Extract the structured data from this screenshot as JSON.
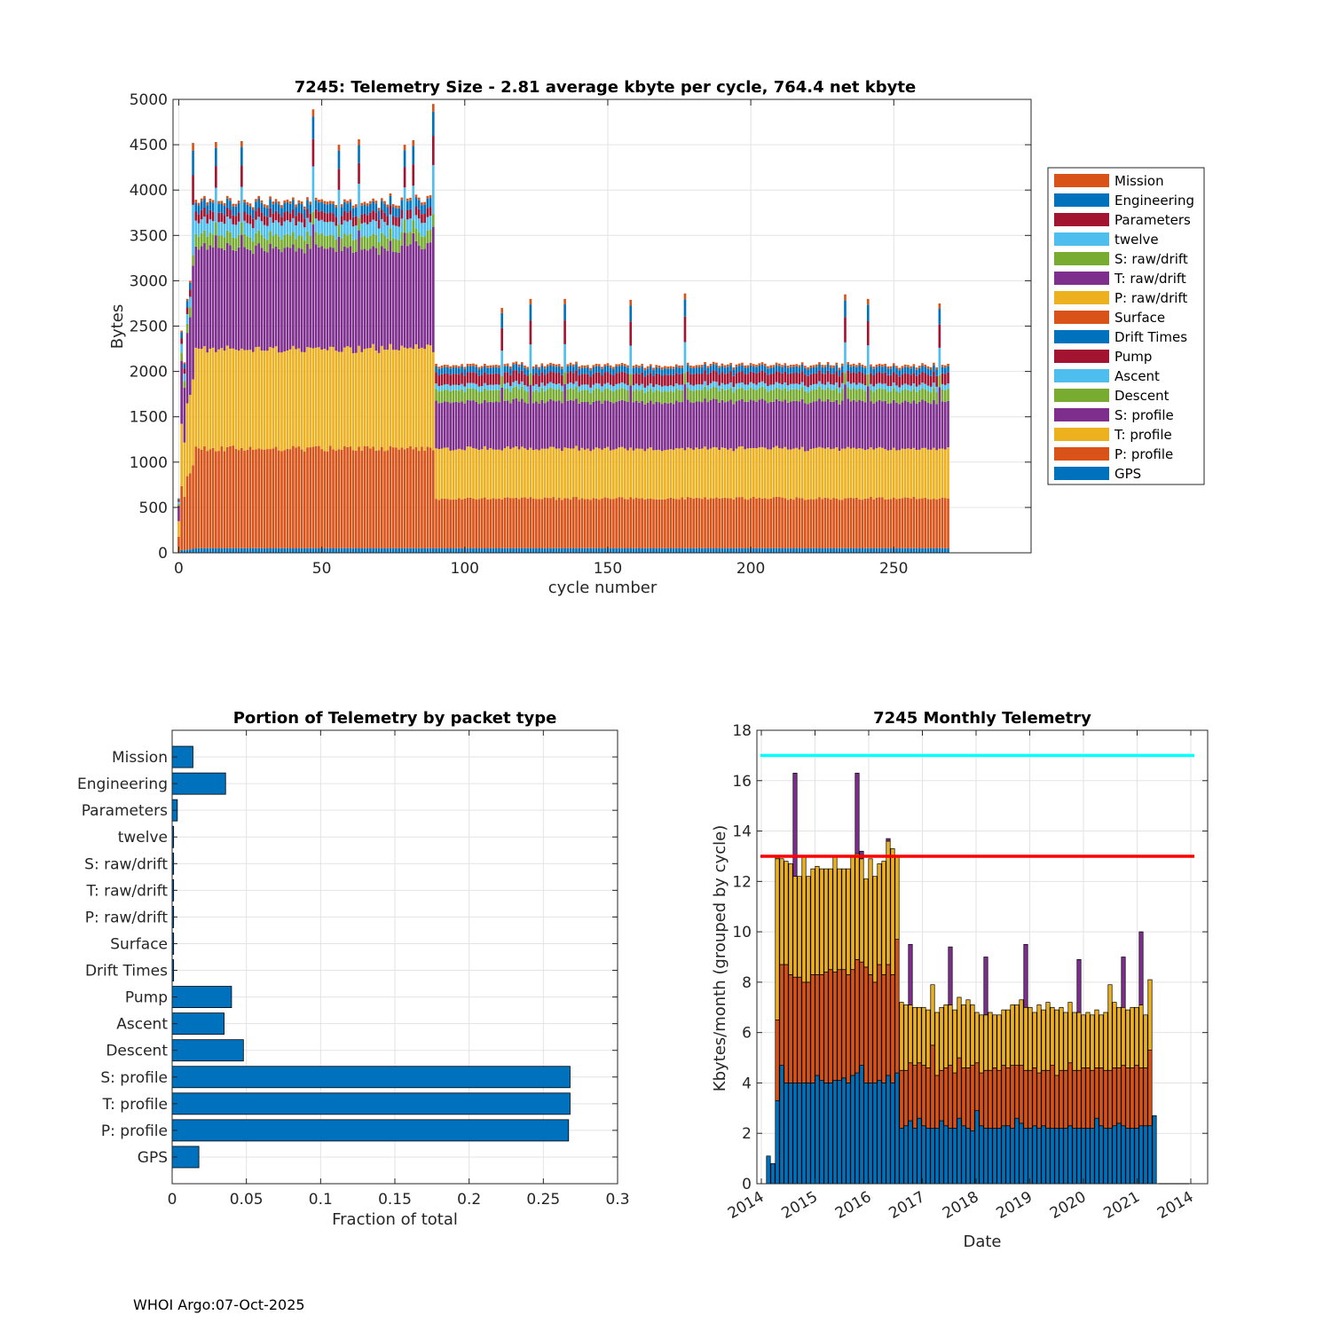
{
  "footer": "WHOI Argo:07-Oct-2025",
  "chart_data": [
    {
      "id": "telemetry-size",
      "type": "bar",
      "stacked": true,
      "title": "7245: Telemetry Size - 2.81 average kbyte per cycle,  764.4 net kbyte",
      "xlabel": "cycle number",
      "ylabel": "Bytes",
      "xlim": [
        -2,
        298
      ],
      "ylim": [
        0,
        5000
      ],
      "xticks": [
        0,
        50,
        100,
        150,
        200,
        250
      ],
      "yticks": [
        0,
        500,
        1000,
        1500,
        2000,
        2500,
        3000,
        3500,
        4000,
        4500,
        5000
      ],
      "grid": true,
      "legend_position": "outside-right",
      "num_cycles": 270,
      "legend": [
        {
          "label": "Mission",
          "color": "#D95319"
        },
        {
          "label": "Engineering",
          "color": "#0072BD"
        },
        {
          "label": "Parameters",
          "color": "#A2142F"
        },
        {
          "label": "twelve",
          "color": "#4DBEEE"
        },
        {
          "label": "S: raw/drift",
          "color": "#77AC30"
        },
        {
          "label": "T: raw/drift",
          "color": "#7E2F8E"
        },
        {
          "label": "P: raw/drift",
          "color": "#EDB120"
        },
        {
          "label": "Surface",
          "color": "#D95319"
        },
        {
          "label": "Drift Times",
          "color": "#0072BD"
        },
        {
          "label": "Pump",
          "color": "#A2142F"
        },
        {
          "label": "Ascent",
          "color": "#4DBEEE"
        },
        {
          "label": "Descent",
          "color": "#77AC30"
        },
        {
          "label": "S: profile",
          "color": "#7E2F8E"
        },
        {
          "label": "T: profile",
          "color": "#EDB120"
        },
        {
          "label": "P: profile",
          "color": "#D95319"
        },
        {
          "label": "GPS",
          "color": "#0072BD"
        }
      ],
      "segments_bottom_to_top": [
        {
          "name": "GPS",
          "color": "#0072BD",
          "phase1": 50,
          "phase2": 50
        },
        {
          "name": "P: profile",
          "color": "#D95319",
          "phase1": 1100,
          "phase2": 550
        },
        {
          "name": "T: profile",
          "color": "#EDB120",
          "phase1": 1100,
          "phase2": 550
        },
        {
          "name": "S: profile",
          "color": "#7E2F8E",
          "phase1": 1110,
          "phase2": 520
        },
        {
          "name": "Descent",
          "color": "#77AC30",
          "phase1": 140,
          "phase2": 130
        },
        {
          "name": "Ascent",
          "color": "#4DBEEE",
          "phase1": 150,
          "phase2": 60
        },
        {
          "name": "Pump",
          "color": "#A2142F",
          "phase1": 100,
          "phase2": 120
        },
        {
          "name": "Engineering",
          "color": "#0072BD",
          "phase1": 100,
          "phase2": 70
        },
        {
          "name": "Mission",
          "color": "#D95319",
          "phase1": 30,
          "phase2": 25
        }
      ],
      "phase_boundary_cycle": 89,
      "phase1_total_approx": 3880,
      "phase2_total_approx": 2150,
      "spikes": [
        {
          "cycle": 5,
          "value": 4520
        },
        {
          "cycle": 13,
          "value": 4530
        },
        {
          "cycle": 22,
          "value": 4540
        },
        {
          "cycle": 47,
          "value": 4890
        },
        {
          "cycle": 56,
          "value": 4500
        },
        {
          "cycle": 63,
          "value": 4560
        },
        {
          "cycle": 79,
          "value": 4500
        },
        {
          "cycle": 82,
          "value": 4550
        },
        {
          "cycle": 89,
          "value": 4950
        },
        {
          "cycle": 113,
          "value": 2700
        },
        {
          "cycle": 123,
          "value": 2800
        },
        {
          "cycle": 135,
          "value": 2800
        },
        {
          "cycle": 158,
          "value": 2790
        },
        {
          "cycle": 177,
          "value": 2860
        },
        {
          "cycle": 233,
          "value": 2850
        },
        {
          "cycle": 241,
          "value": 2800
        },
        {
          "cycle": 266,
          "value": 2750
        }
      ]
    },
    {
      "id": "portion-by-packet",
      "type": "bar",
      "orientation": "horizontal",
      "title": "Portion of Telemetry by packet type",
      "xlabel": "Fraction of total",
      "ylabel": "",
      "xlim": [
        0,
        0.3
      ],
      "xticks": [
        "0",
        "0.05",
        "0.1",
        "0.15",
        "0.2",
        "0.25",
        "0.3"
      ],
      "grid": true,
      "categories": [
        "Mission",
        "Engineering",
        "Parameters",
        "twelve",
        "S: raw/drift",
        "T: raw/drift",
        "P: raw/drift",
        "Surface",
        "Drift Times",
        "Pump",
        "Ascent",
        "Descent",
        "S: profile",
        "T: profile",
        "P: profile",
        "GPS"
      ],
      "values": [
        0.014,
        0.036,
        0.0035,
        0.001,
        0.001,
        0.001,
        0.001,
        0.001,
        0.001,
        0.04,
        0.035,
        0.048,
        0.268,
        0.268,
        0.267,
        0.018
      ],
      "bar_color": "#0072BD"
    },
    {
      "id": "monthly-telemetry",
      "type": "bar",
      "stacked": true,
      "title": "7245 Monthly Telemetry",
      "xlabel": "Date",
      "ylabel": "Kbytes/month (grouped by cycle)",
      "ylim": [
        0,
        18
      ],
      "yticks": [
        0,
        2,
        4,
        6,
        8,
        10,
        12,
        14,
        16,
        18
      ],
      "xticklabels": [
        "2014",
        "2015",
        "2016",
        "2017",
        "2018",
        "2019",
        "2020",
        "2021",
        "2014"
      ],
      "grid": true,
      "reference_lines": [
        {
          "value": 17,
          "color": "#00FFFF"
        },
        {
          "value": 13,
          "color": "#FF0000"
        }
      ],
      "series_colors": [
        "#0072BD",
        "#D95319",
        "#EDB120",
        "#7E2F8E",
        "#77AC30"
      ],
      "months": [
        {
          "segments": [
            1.1
          ]
        },
        {
          "segments": [
            0.8,
            0,
            0,
            0,
            0
          ]
        },
        {
          "segments": [
            3.3,
            3.2,
            6.4,
            0,
            0.1
          ]
        },
        {
          "segments": [
            4.7,
            4.0,
            4.2,
            0,
            0
          ]
        },
        {
          "segments": [
            4.0,
            4.7,
            4.1,
            0,
            0
          ]
        },
        {
          "segments": [
            4.0,
            4.3,
            4.4,
            0,
            0
          ]
        },
        {
          "segments": [
            4.0,
            4.2,
            4.0,
            4.1,
            0
          ]
        },
        {
          "segments": [
            4.0,
            4.2,
            4.0,
            0,
            0
          ]
        },
        {
          "segments": [
            4.0,
            4.0,
            5.0,
            0,
            0
          ]
        },
        {
          "segments": [
            4.0,
            4.0,
            4.2,
            0,
            0
          ]
        },
        {
          "segments": [
            4.0,
            4.3,
            4.2,
            0,
            0
          ]
        },
        {
          "segments": [
            4.3,
            4.0,
            4.3,
            0,
            0
          ]
        },
        {
          "segments": [
            4.1,
            4.2,
            4.2,
            0,
            0
          ]
        },
        {
          "segments": [
            4.0,
            4.4,
            4.1,
            0,
            0
          ]
        },
        {
          "segments": [
            4.0,
            4.5,
            4.0,
            0,
            0
          ]
        },
        {
          "segments": [
            4.1,
            4.3,
            4.6,
            0,
            0
          ]
        },
        {
          "segments": [
            4.1,
            4.4,
            4.0,
            0,
            0
          ]
        },
        {
          "segments": [
            4.2,
            4.3,
            4.0,
            0,
            0
          ]
        },
        {
          "segments": [
            4.0,
            4.3,
            4.2,
            0,
            0
          ]
        },
        {
          "segments": [
            4.3,
            4.2,
            4.5,
            0,
            0
          ]
        },
        {
          "segments": [
            4.4,
            4.5,
            4.2,
            3.2,
            0
          ]
        },
        {
          "segments": [
            4.7,
            4.1,
            4.1,
            0.3,
            0
          ]
        },
        {
          "segments": [
            4.0,
            4.6,
            3.5,
            0,
            0
          ]
        },
        {
          "segments": [
            4.0,
            4.3,
            4.6,
            0,
            0
          ]
        },
        {
          "segments": [
            4.0,
            4.0,
            4.2,
            0,
            0
          ]
        },
        {
          "segments": [
            4.1,
            4.6,
            4.0,
            0,
            0
          ]
        },
        {
          "segments": [
            4.0,
            4.3,
            4.5,
            0,
            0
          ]
        },
        {
          "segments": [
            4.3,
            4.4,
            4.9,
            0.1,
            0
          ]
        },
        {
          "segments": [
            4.0,
            4.3,
            5.0,
            0,
            0
          ]
        },
        {
          "segments": [
            4.4,
            5.3,
            3.3,
            0,
            0
          ]
        },
        {
          "segments": [
            2.2,
            2.3,
            2.7,
            0,
            0
          ]
        },
        {
          "segments": [
            2.3,
            2.2,
            2.6,
            0,
            0
          ]
        },
        {
          "segments": [
            2.5,
            2.3,
            2.3,
            2.4,
            0
          ]
        },
        {
          "segments": [
            2.2,
            2.5,
            2.3,
            0,
            0
          ]
        },
        {
          "segments": [
            2.6,
            2.2,
            2.2,
            0,
            0
          ]
        },
        {
          "segments": [
            2.3,
            2.4,
            2.3,
            0,
            0
          ]
        },
        {
          "segments": [
            2.2,
            2.4,
            2.3,
            0,
            0
          ]
        },
        {
          "segments": [
            2.2,
            3.3,
            2.4,
            0,
            0
          ]
        },
        {
          "segments": [
            2.2,
            2.1,
            2.5,
            0,
            0
          ]
        },
        {
          "segments": [
            2.5,
            2.0,
            2.5,
            0,
            0
          ]
        },
        {
          "segments": [
            2.3,
            2.3,
            2.5,
            0,
            0
          ]
        },
        {
          "segments": [
            2.2,
            2.5,
            2.4,
            2.3,
            0
          ]
        },
        {
          "segments": [
            2.2,
            2.2,
            2.5,
            0,
            0
          ]
        },
        {
          "segments": [
            2.6,
            2.4,
            2.4,
            0,
            0
          ]
        },
        {
          "segments": [
            2.3,
            2.3,
            2.5,
            0,
            0
          ]
        },
        {
          "segments": [
            2.2,
            2.4,
            2.7,
            0,
            0
          ]
        },
        {
          "segments": [
            2.1,
            2.6,
            2.4,
            0,
            0
          ]
        },
        {
          "segments": [
            2.9,
            1.9,
            2.0,
            0,
            0
          ]
        },
        {
          "segments": [
            2.3,
            2.1,
            2.3,
            0,
            0
          ]
        },
        {
          "segments": [
            2.2,
            2.3,
            2.2,
            2.3,
            0
          ]
        },
        {
          "segments": [
            2.2,
            2.3,
            2.3,
            0,
            0
          ]
        },
        {
          "segments": [
            2.2,
            2.4,
            2.1,
            0,
            0
          ]
        },
        {
          "segments": [
            2.2,
            2.3,
            2.2,
            0,
            0
          ]
        },
        {
          "segments": [
            2.3,
            2.4,
            2.2,
            0,
            0
          ]
        },
        {
          "segments": [
            2.3,
            2.3,
            2.3,
            0,
            0
          ]
        },
        {
          "segments": [
            2.2,
            2.5,
            2.4,
            0,
            0
          ]
        },
        {
          "segments": [
            2.6,
            2.1,
            2.4,
            0,
            0
          ]
        },
        {
          "segments": [
            2.4,
            2.3,
            2.6,
            0,
            0
          ]
        },
        {
          "segments": [
            2.2,
            2.3,
            2.5,
            2.5,
            0
          ]
        },
        {
          "segments": [
            2.2,
            2.3,
            2.5,
            0,
            0
          ]
        },
        {
          "segments": [
            2.3,
            2.3,
            2.2,
            0,
            0
          ]
        },
        {
          "segments": [
            2.2,
            2.2,
            2.7,
            0,
            0
          ]
        },
        {
          "segments": [
            2.3,
            2.2,
            2.4,
            0,
            0
          ]
        },
        {
          "segments": [
            2.2,
            2.3,
            2.7,
            0,
            0
          ]
        },
        {
          "segments": [
            2.2,
            2.5,
            2.3,
            0,
            0
          ]
        },
        {
          "segments": [
            2.2,
            2.1,
            2.6,
            0,
            0
          ]
        },
        {
          "segments": [
            2.2,
            2.3,
            2.5,
            0,
            0
          ]
        },
        {
          "segments": [
            2.2,
            2.3,
            2.3,
            0,
            0
          ]
        },
        {
          "segments": [
            2.3,
            2.5,
            2.4,
            0,
            0
          ]
        },
        {
          "segments": [
            2.2,
            2.3,
            2.3,
            0,
            0
          ]
        },
        {
          "segments": [
            2.2,
            2.3,
            2.3,
            2.1,
            0
          ]
        },
        {
          "segments": [
            2.2,
            2.4,
            2.1,
            0,
            0
          ]
        },
        {
          "segments": [
            2.2,
            2.4,
            2.2,
            0,
            0
          ]
        },
        {
          "segments": [
            2.2,
            2.3,
            2.2,
            0,
            0
          ]
        },
        {
          "segments": [
            2.6,
            2.0,
            2.3,
            0,
            0
          ]
        },
        {
          "segments": [
            2.3,
            2.3,
            2.1,
            0,
            0
          ]
        },
        {
          "segments": [
            2.2,
            2.3,
            2.3,
            0,
            0
          ]
        },
        {
          "segments": [
            2.2,
            2.3,
            3.4,
            0,
            0
          ]
        },
        {
          "segments": [
            2.3,
            2.3,
            2.6,
            0,
            0
          ]
        },
        {
          "segments": [
            2.4,
            2.2,
            2.4,
            0,
            0
          ]
        },
        {
          "segments": [
            2.3,
            2.4,
            2.3,
            2.0,
            0
          ]
        },
        {
          "segments": [
            2.2,
            2.4,
            2.3,
            0,
            0
          ]
        },
        {
          "segments": [
            2.2,
            2.4,
            2.4,
            0,
            0
          ]
        },
        {
          "segments": [
            2.2,
            2.5,
            2.3,
            0,
            0
          ]
        },
        {
          "segments": [
            2.3,
            2.3,
            2.5,
            2.9,
            0
          ]
        },
        {
          "segments": [
            2.3,
            2.3,
            2.1,
            0,
            0
          ]
        },
        {
          "segments": [
            2.3,
            3.0,
            2.8,
            0,
            0
          ]
        },
        {
          "segments": [
            2.7,
            0,
            0,
            0,
            0
          ]
        }
      ]
    }
  ]
}
